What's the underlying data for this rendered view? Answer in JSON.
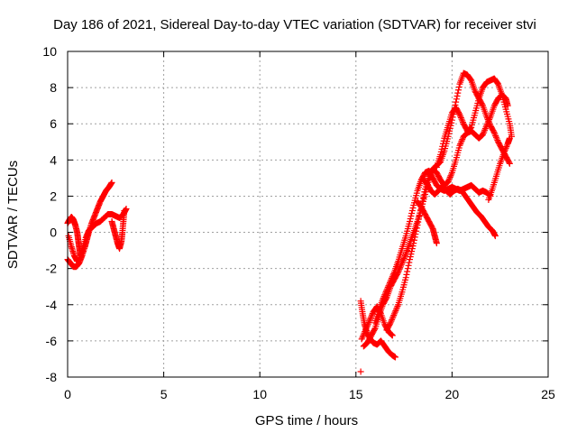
{
  "chart_data": {
    "type": "scatter",
    "title": "Day 186 of 2021, Sidereal Day-to-day VTEC variation (SDTVAR) for receiver stvi",
    "xlabel": "GPS time / hours",
    "ylabel": "SDTVAR / TECUs",
    "xlim": [
      0,
      25
    ],
    "ylim": [
      -8,
      10
    ],
    "xticks": [
      "0",
      "5",
      "10",
      "15",
      "20",
      "25"
    ],
    "yticks": [
      "-8",
      "-6",
      "-4",
      "-2",
      "0",
      "2",
      "4",
      "6",
      "8",
      "10"
    ],
    "grid": true,
    "marker": "+",
    "color": "#ff0000",
    "series": [
      {
        "tracks": [
          [
            [
              0.0,
              0.5
            ],
            [
              0.1,
              0.7
            ],
            [
              0.2,
              0.85
            ],
            [
              0.3,
              0.7
            ],
            [
              0.4,
              0.4
            ],
            [
              0.5,
              0.0
            ],
            [
              0.55,
              -0.4
            ],
            [
              0.6,
              -0.8
            ],
            [
              0.65,
              -1.2
            ],
            [
              0.7,
              -1.3
            ]
          ],
          [
            [
              0.0,
              -1.5
            ],
            [
              0.15,
              -1.7
            ],
            [
              0.3,
              -1.9
            ],
            [
              0.45,
              -1.9
            ],
            [
              0.6,
              -1.7
            ],
            [
              0.75,
              -1.3
            ],
            [
              0.9,
              -0.8
            ],
            [
              1.0,
              -0.4
            ],
            [
              1.1,
              0.0
            ],
            [
              1.25,
              0.5
            ],
            [
              1.4,
              0.9
            ],
            [
              1.55,
              1.3
            ],
            [
              1.7,
              1.7
            ],
            [
              1.85,
              2.0
            ],
            [
              2.0,
              2.3
            ],
            [
              2.15,
              2.5
            ],
            [
              2.3,
              2.75
            ]
          ],
          [
            [
              0.05,
              -0.2
            ],
            [
              0.2,
              -0.8
            ],
            [
              0.35,
              -1.3
            ],
            [
              0.5,
              -1.6
            ],
            [
              0.65,
              -1.5
            ],
            [
              0.8,
              -0.9
            ],
            [
              0.95,
              -0.3
            ],
            [
              1.1,
              0.1
            ],
            [
              1.3,
              0.3
            ],
            [
              1.5,
              0.5
            ],
            [
              1.7,
              0.6
            ],
            [
              1.9,
              0.8
            ],
            [
              2.1,
              1.0
            ],
            [
              2.3,
              1.0
            ],
            [
              2.5,
              0.9
            ],
            [
              2.7,
              0.8
            ],
            [
              2.9,
              1.0
            ],
            [
              3.05,
              1.3
            ]
          ],
          [
            [
              2.3,
              0.6
            ],
            [
              2.4,
              0.2
            ],
            [
              2.5,
              -0.2
            ],
            [
              2.6,
              -0.6
            ],
            [
              2.7,
              -0.9
            ],
            [
              2.8,
              -0.5
            ],
            [
              2.85,
              0.0
            ],
            [
              2.9,
              0.6
            ],
            [
              2.95,
              1.2
            ]
          ]
        ]
      },
      {
        "tracks": [
          [
            [
              15.25,
              -3.8
            ],
            [
              15.35,
              -4.5
            ],
            [
              15.45,
              -5.1
            ],
            [
              15.6,
              -5.6
            ],
            [
              15.75,
              -5.9
            ],
            [
              15.9,
              -6.1
            ],
            [
              16.1,
              -6.2
            ],
            [
              16.3,
              -6.0
            ],
            [
              16.5,
              -6.3
            ],
            [
              16.7,
              -6.6
            ],
            [
              16.9,
              -6.8
            ],
            [
              17.05,
              -6.9
            ]
          ],
          [
            [
              15.3,
              -5.9
            ],
            [
              15.5,
              -5.4
            ],
            [
              15.7,
              -4.9
            ],
            [
              15.9,
              -4.4
            ],
            [
              16.1,
              -4.1
            ],
            [
              16.3,
              -4.5
            ],
            [
              16.5,
              -5.1
            ],
            [
              16.7,
              -5.5
            ],
            [
              16.9,
              -5.7
            ]
          ],
          [
            [
              15.4,
              -6.3
            ],
            [
              15.6,
              -6.1
            ],
            [
              15.8,
              -5.7
            ],
            [
              16.0,
              -5.3
            ],
            [
              16.2,
              -4.6
            ],
            [
              16.4,
              -4.0
            ],
            [
              16.6,
              -3.6
            ],
            [
              16.8,
              -3.0
            ],
            [
              17.0,
              -2.6
            ],
            [
              17.2,
              -2.2
            ],
            [
              17.4,
              -1.7
            ],
            [
              17.6,
              -1.2
            ],
            [
              17.8,
              -0.6
            ],
            [
              18.0,
              0.0
            ],
            [
              18.2,
              0.6
            ],
            [
              18.4,
              1.3
            ],
            [
              18.6,
              2.1
            ],
            [
              18.8,
              2.9
            ],
            [
              19.0,
              3.5
            ],
            [
              19.2,
              3.7
            ],
            [
              19.4,
              3.9
            ],
            [
              19.6,
              4.5
            ],
            [
              19.8,
              5.3
            ],
            [
              20.0,
              6.2
            ],
            [
              20.2,
              7.2
            ],
            [
              20.4,
              8.2
            ],
            [
              20.6,
              8.8
            ],
            [
              20.8,
              8.7
            ],
            [
              21.0,
              8.4
            ],
            [
              21.2,
              7.8
            ],
            [
              21.4,
              7.4
            ],
            [
              21.6,
              7.0
            ],
            [
              21.8,
              6.4
            ],
            [
              22.0,
              5.9
            ],
            [
              22.2,
              5.5
            ],
            [
              22.4,
              5.0
            ],
            [
              22.6,
              4.6
            ],
            [
              22.8,
              4.2
            ],
            [
              23.0,
              3.8
            ]
          ],
          [
            [
              16.0,
              -5.0
            ],
            [
              16.2,
              -4.3
            ],
            [
              16.4,
              -3.7
            ],
            [
              16.6,
              -3.2
            ],
            [
              16.8,
              -2.7
            ],
            [
              17.0,
              -2.2
            ],
            [
              17.2,
              -1.6
            ],
            [
              17.4,
              -0.9
            ],
            [
              17.6,
              -0.2
            ],
            [
              17.8,
              0.6
            ],
            [
              18.0,
              1.5
            ],
            [
              18.2,
              2.3
            ],
            [
              18.4,
              2.9
            ],
            [
              18.6,
              3.3
            ],
            [
              18.8,
              3.4
            ],
            [
              19.0,
              3.0
            ],
            [
              19.2,
              2.6
            ],
            [
              19.4,
              2.4
            ],
            [
              19.6,
              2.3
            ],
            [
              19.8,
              2.4
            ],
            [
              20.0,
              2.5
            ],
            [
              20.2,
              2.4
            ],
            [
              20.4,
              2.3
            ],
            [
              20.6,
              2.4
            ],
            [
              20.8,
              2.5
            ],
            [
              21.0,
              2.6
            ],
            [
              21.2,
              2.4
            ],
            [
              21.4,
              2.2
            ],
            [
              21.6,
              2.3
            ],
            [
              21.8,
              2.2
            ],
            [
              22.0,
              2.0
            ]
          ],
          [
            [
              16.6,
              -5.4
            ],
            [
              16.8,
              -5.0
            ],
            [
              17.0,
              -4.5
            ],
            [
              17.2,
              -4.0
            ],
            [
              17.4,
              -3.3
            ],
            [
              17.6,
              -2.5
            ],
            [
              17.8,
              -1.5
            ],
            [
              18.0,
              -0.6
            ],
            [
              18.2,
              0.4
            ],
            [
              18.4,
              1.4
            ],
            [
              18.6,
              2.4
            ],
            [
              18.8,
              3.1
            ],
            [
              19.0,
              3.5
            ],
            [
              19.2,
              3.3
            ],
            [
              19.4,
              2.9
            ],
            [
              19.6,
              2.6
            ],
            [
              19.8,
              2.8
            ],
            [
              20.0,
              3.3
            ],
            [
              20.2,
              4.0
            ],
            [
              20.4,
              4.8
            ],
            [
              20.6,
              5.3
            ],
            [
              20.8,
              5.5
            ],
            [
              21.0,
              5.6
            ],
            [
              21.2,
              5.4
            ],
            [
              21.4,
              5.2
            ],
            [
              21.6,
              5.4
            ],
            [
              21.8,
              5.9
            ],
            [
              22.0,
              6.4
            ],
            [
              22.2,
              7.0
            ],
            [
              22.4,
              7.4
            ],
            [
              22.6,
              7.6
            ],
            [
              22.8,
              7.4
            ],
            [
              22.9,
              7.0
            ]
          ],
          [
            [
              18.2,
              1.7
            ],
            [
              18.4,
              1.4
            ],
            [
              18.6,
              1.0
            ],
            [
              18.8,
              0.6
            ],
            [
              19.0,
              0.2
            ],
            [
              19.1,
              -0.2
            ],
            [
              19.2,
              -0.6
            ]
          ],
          [
            [
              18.5,
              2.9
            ],
            [
              18.7,
              2.7
            ],
            [
              18.9,
              2.3
            ],
            [
              19.1,
              2.1
            ],
            [
              19.3,
              2.3
            ],
            [
              19.5,
              2.6
            ],
            [
              19.7,
              2.3
            ],
            [
              19.9,
              2.1
            ],
            [
              20.1,
              2.3
            ],
            [
              20.3,
              2.4
            ],
            [
              20.5,
              2.3
            ],
            [
              20.7,
              2.0
            ],
            [
              20.9,
              1.7
            ],
            [
              21.1,
              1.4
            ],
            [
              21.3,
              1.1
            ],
            [
              21.5,
              0.9
            ],
            [
              21.7,
              0.6
            ],
            [
              21.9,
              0.3
            ],
            [
              22.1,
              0.1
            ],
            [
              22.25,
              -0.2
            ]
          ],
          [
            [
              19.2,
              3.6
            ],
            [
              19.4,
              4.3
            ],
            [
              19.6,
              5.2
            ],
            [
              19.8,
              5.9
            ],
            [
              20.0,
              6.6
            ],
            [
              20.2,
              6.9
            ],
            [
              20.4,
              6.5
            ],
            [
              20.6,
              6.0
            ],
            [
              20.8,
              5.6
            ],
            [
              21.0,
              5.8
            ],
            [
              21.2,
              6.6
            ],
            [
              21.4,
              7.4
            ],
            [
              21.6,
              8.0
            ],
            [
              21.8,
              8.3
            ],
            [
              22.0,
              8.4
            ],
            [
              22.2,
              8.5
            ],
            [
              22.4,
              8.2
            ],
            [
              22.6,
              7.6
            ],
            [
              22.8,
              6.8
            ],
            [
              23.0,
              6.0
            ],
            [
              23.1,
              5.3
            ]
          ],
          [
            [
              21.9,
              1.8
            ],
            [
              22.1,
              2.4
            ],
            [
              22.3,
              3.1
            ],
            [
              22.5,
              3.8
            ],
            [
              22.7,
              4.4
            ],
            [
              22.9,
              4.9
            ],
            [
              23.0,
              5.2
            ]
          ],
          [
            [
              15.25,
              -7.7
            ]
          ]
        ]
      }
    ]
  }
}
